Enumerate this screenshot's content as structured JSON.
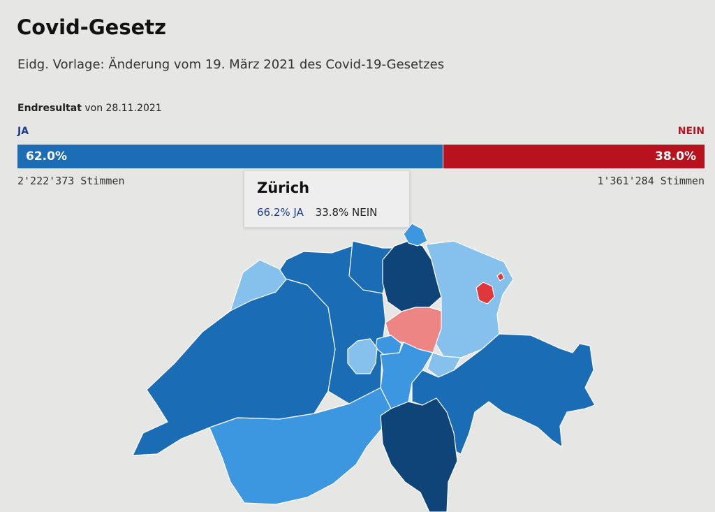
{
  "header": {
    "title": "Covid-Gesetz",
    "subtitle": "Eidg. Vorlage: Änderung vom 19. März 2021 des Covid-19-Gesetzes"
  },
  "result": {
    "label_bold": "Endresultat",
    "label_rest": " von 28.11.2021",
    "ja_label": "JA",
    "nein_label": "NEIN",
    "ja_share": 62.0,
    "nein_share": 38.0,
    "ja_percent": "62.0%",
    "nein_percent": "38.0%",
    "ja_votes": "2'222'373 Stimmen",
    "nein_votes": "1'361'284 Stimmen"
  },
  "colors": {
    "ja_text": "#1a3a8c",
    "nein_text": "#b3121f",
    "ja_bar": "#1c6db5",
    "nein_bar": "#b8121f",
    "ja_dark": "#0f4478",
    "ja_mid": "#1a6cb5",
    "ja_light": "#3c96e0",
    "ja_pale": "#86c0ec",
    "nein_light": "#ee8585",
    "nein_strong": "#e0373a"
  },
  "tooltip": {
    "name": "Zürich",
    "ja": "66.2% JA",
    "nein": "33.8% NEIN"
  },
  "map": {
    "regions": [
      {
        "id": "canton-west-mid",
        "shade": "ja_mid"
      },
      {
        "id": "canton-valais",
        "shade": "ja_light"
      },
      {
        "id": "canton-bern-jura",
        "shade": "ja_mid"
      },
      {
        "id": "canton-aargau",
        "shade": "ja_mid"
      },
      {
        "id": "canton-basel",
        "shade": "ja_pale"
      },
      {
        "id": "canton-zurich",
        "shade": "ja_dark"
      },
      {
        "id": "canton-schaffhausen",
        "shade": "ja_light"
      },
      {
        "id": "canton-thurgau-stgallen",
        "shade": "ja_pale"
      },
      {
        "id": "canton-appenzell-innerrhoden",
        "shade": "nein_strong"
      },
      {
        "id": "canton-schwyz",
        "shade": "nein_light"
      },
      {
        "id": "canton-zug",
        "shade": "ja_light"
      },
      {
        "id": "canton-lucerne",
        "shade": "ja_pale"
      },
      {
        "id": "canton-central",
        "shade": "ja_light"
      },
      {
        "id": "canton-graubuenden",
        "shade": "ja_mid"
      },
      {
        "id": "canton-ticino",
        "shade": "ja_dark"
      },
      {
        "id": "canton-glarus",
        "shade": "ja_pale"
      }
    ]
  }
}
